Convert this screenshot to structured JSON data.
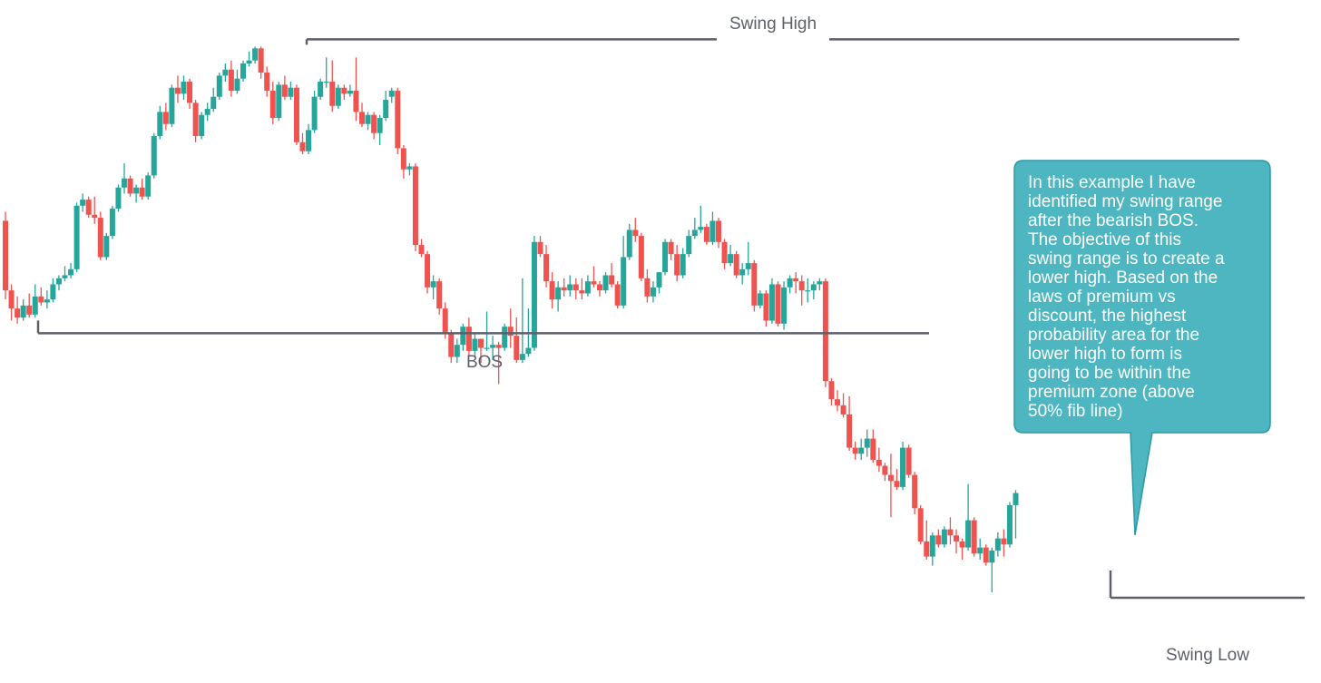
{
  "colors": {
    "bull": "#26a69a",
    "bear": "#ef5350",
    "level_line": "#5d606b",
    "callout_fill": "#4db6c1",
    "callout_border": "#2a9aa5",
    "callout_text": "#ffffff"
  },
  "annotations": {
    "swing_high": "Swing High",
    "bos": "BOS",
    "swing_low": "Swing Low",
    "callout": "In this example I have\nidentified my swing range\nafter the bearish BOS.\nThe objective of this\nswing range is to create a\nlower high. Based on the\nlaws of premium vs\ndiscount, the highest\nprobability area for the\nlower high to form is\ngoing to be within the\npremium zone (above\n50% fib line)"
  },
  "chart_data": {
    "type": "candlestick",
    "axes_shown": false,
    "grid": false,
    "ylim": [
      0,
      100
    ],
    "levels": [
      {
        "label": "Swing High",
        "price": 96.8
      },
      {
        "label": "BOS",
        "price": 49.5
      },
      {
        "label": "Swing Low",
        "price": 6.6
      }
    ],
    "ohlc": [
      [
        68.0,
        69.5,
        55.0,
        56.5
      ],
      [
        56.5,
        57.5,
        51.5,
        53.5
      ],
      [
        53.5,
        55.5,
        51.0,
        52.0
      ],
      [
        52.0,
        55.0,
        51.5,
        54.0
      ],
      [
        54.0,
        56.0,
        52.0,
        52.5
      ],
      [
        52.5,
        57.5,
        52.0,
        55.5
      ],
      [
        55.5,
        57.0,
        54.0,
        54.5
      ],
      [
        54.5,
        56.5,
        53.5,
        55.0
      ],
      [
        55.0,
        58.5,
        54.5,
        57.5
      ],
      [
        57.5,
        59.0,
        56.5,
        58.5
      ],
      [
        58.5,
        60.5,
        58.0,
        59.0
      ],
      [
        59.0,
        61.0,
        58.5,
        60.0
      ],
      [
        60.0,
        71.0,
        59.5,
        70.5
      ],
      [
        70.5,
        72.5,
        69.5,
        71.5
      ],
      [
        71.5,
        72.0,
        68.5,
        69.0
      ],
      [
        69.0,
        72.0,
        67.5,
        68.5
      ],
      [
        68.5,
        69.5,
        61.5,
        62.0
      ],
      [
        62.0,
        66.0,
        61.5,
        65.5
      ],
      [
        65.5,
        70.5,
        65.0,
        70.0
      ],
      [
        70.0,
        74.0,
        69.5,
        73.5
      ],
      [
        73.5,
        77.5,
        72.5,
        75.0
      ],
      [
        75.0,
        75.5,
        72.0,
        72.5
      ],
      [
        72.5,
        74.0,
        71.0,
        73.5
      ],
      [
        73.5,
        75.0,
        71.5,
        72.0
      ],
      [
        72.0,
        76.0,
        71.5,
        75.5
      ],
      [
        75.5,
        82.5,
        75.0,
        82.0
      ],
      [
        82.0,
        87.0,
        81.5,
        86.0
      ],
      [
        86.0,
        87.5,
        83.0,
        84.0
      ],
      [
        84.0,
        90.5,
        83.5,
        90.0
      ],
      [
        90.0,
        92.0,
        87.5,
        89.0
      ],
      [
        89.0,
        92.0,
        88.0,
        91.0
      ],
      [
        91.0,
        91.5,
        86.5,
        87.5
      ],
      [
        87.5,
        88.0,
        81.0,
        82.0
      ],
      [
        82.0,
        86.0,
        81.5,
        85.5
      ],
      [
        85.5,
        87.5,
        84.5,
        86.5
      ],
      [
        86.5,
        90.0,
        86.0,
        88.5
      ],
      [
        88.5,
        92.5,
        88.0,
        92.0
      ],
      [
        92.0,
        94.0,
        91.0,
        93.0
      ],
      [
        93.0,
        94.5,
        88.5,
        89.5
      ],
      [
        89.5,
        93.0,
        89.0,
        91.5
      ],
      [
        91.5,
        94.5,
        91.0,
        94.0
      ],
      [
        94.0,
        96.0,
        93.5,
        94.5
      ],
      [
        94.5,
        96.8,
        94.0,
        96.5
      ],
      [
        96.5,
        96.8,
        91.5,
        92.5
      ],
      [
        92.5,
        93.5,
        88.5,
        89.5
      ],
      [
        89.5,
        91.0,
        84.0,
        85.0
      ],
      [
        85.0,
        91.0,
        84.5,
        90.5
      ],
      [
        90.5,
        92.0,
        88.0,
        88.5
      ],
      [
        88.5,
        91.0,
        88.0,
        90.0
      ],
      [
        90.0,
        90.5,
        80.5,
        81.0
      ],
      [
        81.0,
        82.5,
        79.0,
        79.5
      ],
      [
        79.5,
        84.0,
        79.0,
        83.0
      ],
      [
        83.0,
        89.5,
        82.5,
        88.5
      ],
      [
        88.5,
        91.5,
        88.0,
        91.0
      ],
      [
        91.0,
        95.0,
        90.0,
        91.0
      ],
      [
        91.0,
        94.5,
        86.0,
        87.0
      ],
      [
        87.0,
        90.5,
        86.5,
        90.0
      ],
      [
        90.0,
        90.5,
        88.0,
        89.0
      ],
      [
        89.0,
        90.5,
        88.5,
        89.5
      ],
      [
        89.5,
        95.0,
        84.5,
        86.0
      ],
      [
        86.0,
        87.5,
        83.5,
        84.0
      ],
      [
        84.0,
        86.0,
        83.0,
        85.5
      ],
      [
        85.5,
        86.0,
        81.5,
        82.5
      ],
      [
        82.5,
        85.5,
        80.5,
        85.0
      ],
      [
        85.0,
        89.5,
        84.5,
        88.0
      ],
      [
        88.5,
        90.0,
        87.5,
        89.5
      ],
      [
        89.5,
        90.0,
        79.0,
        80.0
      ],
      [
        80.0,
        80.5,
        75.0,
        76.5
      ],
      [
        76.5,
        77.5,
        75.5,
        77.0
      ],
      [
        77.0,
        77.5,
        63.0,
        64.0
      ],
      [
        64.0,
        65.0,
        62.0,
        62.5
      ],
      [
        62.5,
        63.0,
        56.0,
        57.0
      ],
      [
        57.0,
        59.0,
        55.0,
        58.0
      ],
      [
        58.0,
        58.5,
        52.5,
        53.5
      ],
      [
        53.5,
        54.5,
        48.5,
        49.5
      ],
      [
        49.5,
        50.0,
        44.5,
        45.5
      ],
      [
        45.5,
        48.5,
        44.5,
        47.5
      ],
      [
        47.5,
        51.0,
        46.5,
        50.5
      ],
      [
        50.5,
        52.0,
        45.5,
        46.5
      ],
      [
        46.5,
        49.5,
        45.5,
        48.5
      ],
      [
        48.5,
        48.5,
        44.5,
        47.0
      ],
      [
        47.0,
        53.0,
        46.5,
        47.0
      ],
      [
        47.0,
        49.0,
        45.0,
        47.5
      ],
      [
        47.5,
        48.0,
        41.0,
        47.0
      ],
      [
        47.0,
        51.0,
        46.5,
        50.5
      ],
      [
        50.5,
        53.5,
        47.0,
        49.0
      ],
      [
        49.0,
        52.0,
        44.5,
        45.0
      ],
      [
        45.0,
        58.5,
        44.5,
        46.0
      ],
      [
        46.0,
        53.5,
        45.5,
        47.0
      ],
      [
        47.0,
        65.5,
        46.5,
        64.5
      ],
      [
        64.5,
        65.5,
        62.0,
        62.5
      ],
      [
        62.5,
        64.0,
        57.0,
        58.0
      ],
      [
        58.0,
        59.5,
        53.5,
        55.0
      ],
      [
        55.0,
        58.0,
        53.0,
        57.0
      ],
      [
        57.0,
        58.5,
        55.5,
        56.5
      ],
      [
        56.5,
        59.0,
        55.5,
        57.5
      ],
      [
        57.5,
        58.5,
        55.0,
        56.5
      ],
      [
        56.5,
        58.5,
        55.0,
        56.0
      ],
      [
        56.0,
        59.0,
        55.5,
        58.0
      ],
      [
        58.0,
        60.5,
        57.0,
        57.5
      ],
      [
        57.5,
        58.0,
        55.5,
        56.5
      ],
      [
        56.5,
        59.5,
        56.0,
        59.0
      ],
      [
        59.0,
        61.0,
        57.0,
        57.5
      ],
      [
        57.5,
        58.0,
        53.5,
        54.0
      ],
      [
        54.0,
        65.5,
        53.5,
        62.0
      ],
      [
        62.0,
        67.5,
        61.5,
        66.5
      ],
      [
        66.5,
        68.5,
        64.5,
        65.5
      ],
      [
        65.5,
        66.0,
        58.0,
        58.5
      ],
      [
        58.5,
        60.0,
        54.5,
        55.5
      ],
      [
        55.5,
        58.0,
        54.5,
        57.0
      ],
      [
        57.0,
        59.5,
        56.0,
        59.5
      ],
      [
        59.5,
        65.0,
        59.0,
        64.5
      ],
      [
        64.5,
        65.0,
        61.5,
        62.5
      ],
      [
        62.5,
        64.0,
        58.0,
        59.0
      ],
      [
        59.0,
        63.5,
        58.5,
        62.5
      ],
      [
        62.5,
        66.5,
        62.0,
        65.5
      ],
      [
        65.5,
        68.5,
        65.0,
        66.5
      ],
      [
        66.5,
        70.5,
        66.0,
        67.0
      ],
      [
        67.0,
        67.5,
        64.0,
        64.5
      ],
      [
        64.5,
        69.5,
        64.0,
        68.0
      ],
      [
        68.0,
        68.5,
        63.5,
        64.5
      ],
      [
        64.5,
        65.0,
        60.0,
        61.0
      ],
      [
        61.0,
        64.0,
        60.5,
        62.5
      ],
      [
        62.5,
        63.0,
        58.5,
        59.0
      ],
      [
        59.0,
        61.0,
        57.5,
        60.0
      ],
      [
        60.0,
        64.5,
        59.0,
        61.0
      ],
      [
        61.0,
        61.5,
        53.0,
        54.0
      ],
      [
        54.0,
        56.5,
        53.5,
        56.0
      ],
      [
        56.0,
        56.5,
        50.5,
        51.5
      ],
      [
        51.5,
        58.5,
        51.0,
        57.5
      ],
      [
        57.5,
        58.0,
        50.5,
        51.0
      ],
      [
        51.0,
        58.0,
        50.0,
        57.0
      ],
      [
        57.0,
        59.0,
        56.0,
        58.5
      ],
      [
        58.5,
        59.5,
        56.0,
        58.0
      ],
      [
        58.0,
        59.0,
        54.0,
        56.5
      ],
      [
        56.5,
        58.5,
        54.5,
        56.5
      ],
      [
        56.5,
        58.0,
        55.0,
        57.5
      ],
      [
        57.5,
        58.5,
        56.5,
        58.0
      ],
      [
        58.0,
        58.5,
        40.5,
        41.5
      ],
      [
        41.5,
        42.0,
        37.5,
        38.5
      ],
      [
        38.5,
        40.0,
        36.5,
        37.5
      ],
      [
        37.5,
        39.5,
        35.5,
        36.0
      ],
      [
        36.0,
        39.0,
        30.0,
        30.5
      ],
      [
        30.5,
        31.5,
        28.5,
        29.5
      ],
      [
        29.5,
        32.0,
        28.5,
        30.5
      ],
      [
        30.5,
        33.5,
        29.0,
        32.0
      ],
      [
        32.0,
        33.5,
        28.0,
        28.5
      ],
      [
        28.5,
        30.5,
        26.5,
        27.5
      ],
      [
        27.5,
        28.0,
        25.0,
        26.0
      ],
      [
        26.0,
        29.5,
        19.0,
        25.0
      ],
      [
        25.0,
        27.0,
        23.5,
        24.0
      ],
      [
        24.0,
        31.5,
        23.5,
        30.5
      ],
      [
        30.5,
        31.0,
        25.5,
        26.0
      ],
      [
        26.0,
        26.5,
        19.5,
        20.5
      ],
      [
        20.5,
        21.0,
        14.5,
        15.0
      ],
      [
        15.0,
        18.5,
        12.0,
        12.5
      ],
      [
        12.5,
        16.5,
        11.0,
        16.0
      ],
      [
        16.0,
        17.0,
        14.0,
        14.5
      ],
      [
        14.5,
        17.5,
        14.0,
        17.0
      ],
      [
        17.0,
        19.0,
        14.5,
        16.0
      ],
      [
        16.0,
        17.0,
        13.0,
        15.0
      ],
      [
        15.0,
        15.5,
        12.0,
        14.0
      ],
      [
        14.0,
        24.5,
        13.5,
        18.5
      ],
      [
        18.5,
        19.0,
        12.5,
        13.0
      ],
      [
        13.0,
        15.5,
        12.0,
        14.0
      ],
      [
        14.0,
        14.5,
        11.0,
        11.5
      ],
      [
        11.5,
        14.0,
        6.6,
        13.5
      ],
      [
        13.5,
        16.5,
        12.5,
        15.5
      ],
      [
        15.5,
        17.0,
        12.5,
        14.5
      ],
      [
        14.5,
        21.5,
        14.0,
        21.0
      ],
      [
        21.0,
        23.5,
        15.5,
        23.0
      ]
    ]
  }
}
